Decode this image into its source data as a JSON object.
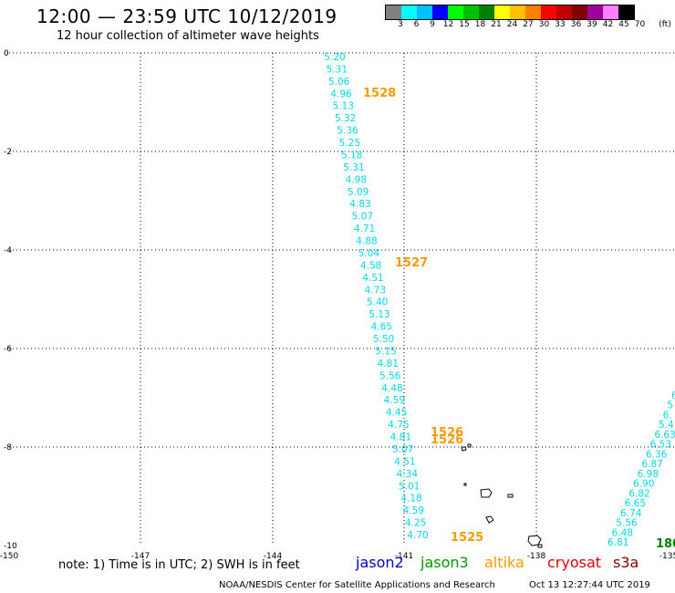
{
  "header": {
    "title": "12:00 — 23:59 UTC 10/12/2019",
    "subtitle": "12 hour collection of altimeter wave heights"
  },
  "colorbar": {
    "colors": [
      "#808080",
      "#00ffff",
      "#00c0ff",
      "#0000ff",
      "#00ff00",
      "#00c000",
      "#008000",
      "#ffff00",
      "#ffc000",
      "#ff8000",
      "#ff0000",
      "#c00000",
      "#800000",
      "#a000a0",
      "#ff80ff",
      "#000000"
    ],
    "labels": [
      "3",
      "6",
      "9",
      "12",
      "15",
      "18",
      "21",
      "24",
      "27",
      "30",
      "33",
      "36",
      "39",
      "42",
      "45",
      "70",
      "(ft)"
    ]
  },
  "axes": {
    "y_labels": [
      "0",
      "-2",
      "-4",
      "-6",
      "-8",
      "-10"
    ],
    "x_labels": [
      "-150",
      "-147",
      "-144",
      "-141",
      "-138",
      "-135"
    ]
  },
  "map_data": {
    "wave_color": "#00d8e8",
    "pass_color": "#ff9900",
    "main_track_values": [
      "5.20",
      "5.31",
      "5.06",
      "4.96",
      "5.13",
      "5.32",
      "5.36",
      "5.25",
      "5.18",
      "5.31",
      "4.98",
      "5.09",
      "4.83",
      "5.07",
      "4.71",
      "4.88",
      "5.04",
      "4.58",
      "4.51",
      "4.73",
      "5.40",
      "5.13",
      "4.65",
      "5.50",
      "5.15",
      "4.81",
      "5.56",
      "4.48",
      "4.59",
      "4.45",
      "4.75",
      "4.81",
      "5.07",
      "4.51",
      "4.34",
      "5.01",
      "4.18",
      "4.59",
      "4.25",
      "4.70"
    ],
    "right_track_values": [
      "6",
      "5",
      "6.",
      "5.4",
      "6.63",
      "6.53",
      "6.36",
      "6.87",
      "6.98",
      "6.90",
      "6.82",
      "6.65",
      "6.74",
      "5.56",
      "6.48",
      "6.81"
    ],
    "pass_labels": [
      "1528",
      "1527",
      "1526",
      "1526",
      "1525"
    ],
    "green_label": "180",
    "green_color": "#008000"
  },
  "footer": {
    "note": "note: 1) Time is in UTC; 2) SWH is in feet",
    "satellites": [
      {
        "name": "jason2",
        "color": "#0000cc"
      },
      {
        "name": "jason3",
        "color": "#009900"
      },
      {
        "name": "altika",
        "color": "#ff9900"
      },
      {
        "name": "cryosat",
        "color": "#dd0000"
      },
      {
        "name": "s3a",
        "color": "#8b0000"
      }
    ],
    "credit": "NOAA/NESDIS Center for Satellite Applications and Research",
    "timestamp": "Oct 13 12:27:44 UTC 2019"
  }
}
